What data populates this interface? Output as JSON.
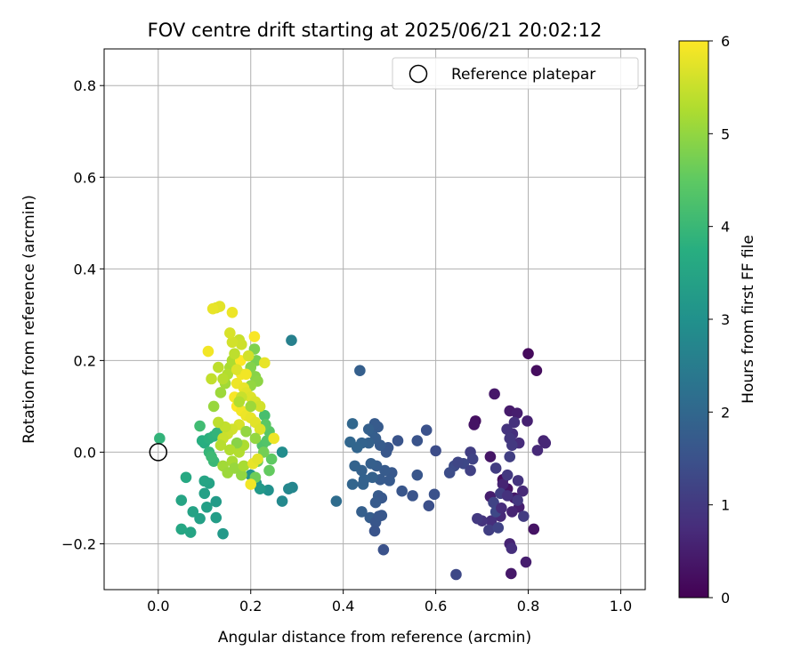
{
  "chart_data": {
    "type": "scatter",
    "title": "FOV centre drift starting at 2025/06/21 20:02:12",
    "xlabel": "Angular distance from reference (arcmin)",
    "ylabel": "Rotation from reference (arcmin)",
    "xlim": [
      -0.117,
      1.053
    ],
    "ylim": [
      -0.3,
      0.88
    ],
    "xticks": [
      0.0,
      0.2,
      0.4,
      0.6,
      0.8,
      1.0
    ],
    "xtick_labels": [
      "0.0",
      "0.2",
      "0.4",
      "0.6",
      "0.8",
      "1.0"
    ],
    "yticks": [
      -0.2,
      0.0,
      0.2,
      0.4,
      0.6,
      0.8
    ],
    "ytick_labels": [
      "−0.2",
      "0.0",
      "0.2",
      "0.4",
      "0.6",
      "0.8"
    ],
    "grid": true,
    "legend": {
      "position": "top-right",
      "entries": [
        "Reference platepar"
      ]
    },
    "reference_point": {
      "x": 0.0,
      "y": 0.0
    },
    "colorbar": {
      "label": "Hours from first FF file",
      "min": 0,
      "max": 6,
      "ticks": [
        0,
        1,
        2,
        3,
        4,
        5,
        6
      ],
      "tick_labels": [
        "0",
        "1",
        "2",
        "3",
        "4",
        "5",
        "6"
      ],
      "colormap": "viridis"
    },
    "points": [
      [
        0.8,
        0.215,
        0.15
      ],
      [
        0.818,
        0.178,
        0.2
      ],
      [
        0.686,
        0.068,
        0.25
      ],
      [
        0.683,
        0.06,
        0.3
      ],
      [
        0.718,
        -0.01,
        0.35
      ],
      [
        0.727,
        0.127,
        0.4
      ],
      [
        0.76,
        0.09,
        0.45
      ],
      [
        0.776,
        0.085,
        0.5
      ],
      [
        0.798,
        0.068,
        0.55
      ],
      [
        0.833,
        0.025,
        0.6
      ],
      [
        0.837,
        0.02,
        0.65
      ],
      [
        0.82,
        0.004,
        0.7
      ],
      [
        0.78,
        0.02,
        0.75
      ],
      [
        0.766,
        0.04,
        0.8
      ],
      [
        0.77,
        0.065,
        0.85
      ],
      [
        0.754,
        0.05,
        0.9
      ],
      [
        0.76,
        0.03,
        0.95
      ],
      [
        0.765,
        0.015,
        1.0
      ],
      [
        0.73,
        -0.035,
        1.05
      ],
      [
        0.76,
        -0.01,
        1.1
      ],
      [
        0.745,
        -0.06,
        0.2
      ],
      [
        0.755,
        -0.08,
        0.3
      ],
      [
        0.77,
        -0.1,
        0.4
      ],
      [
        0.78,
        -0.12,
        0.5
      ],
      [
        0.765,
        -0.13,
        0.6
      ],
      [
        0.74,
        -0.14,
        0.7
      ],
      [
        0.72,
        -0.15,
        0.8
      ],
      [
        0.7,
        -0.15,
        0.9
      ],
      [
        0.69,
        -0.145,
        1.0
      ],
      [
        0.715,
        -0.17,
        1.1
      ],
      [
        0.735,
        -0.165,
        1.2
      ],
      [
        0.76,
        -0.2,
        0.6
      ],
      [
        0.764,
        -0.21,
        0.8
      ],
      [
        0.812,
        -0.168,
        0.3
      ],
      [
        0.795,
        -0.24,
        0.5
      ],
      [
        0.763,
        -0.265,
        0.4
      ],
      [
        0.718,
        -0.097,
        0.5
      ],
      [
        0.745,
        -0.07,
        0.6
      ],
      [
        0.788,
        -0.085,
        0.7
      ],
      [
        0.778,
        -0.062,
        0.9
      ],
      [
        0.755,
        -0.05,
        1.0
      ],
      [
        0.74,
        -0.09,
        1.1
      ],
      [
        0.725,
        -0.11,
        1.2
      ],
      [
        0.73,
        -0.13,
        1.3
      ],
      [
        0.742,
        -0.122,
        0.75
      ],
      [
        0.755,
        -0.095,
        0.85
      ],
      [
        0.777,
        -0.105,
        0.95
      ],
      [
        0.79,
        -0.14,
        1.05
      ],
      [
        0.675,
        0.0,
        1.1
      ],
      [
        0.68,
        -0.015,
        1.2
      ],
      [
        0.66,
        -0.025,
        1.3
      ],
      [
        0.64,
        -0.03,
        1.35
      ],
      [
        0.648,
        -0.022,
        1.25
      ],
      [
        0.675,
        -0.04,
        1.15
      ],
      [
        0.63,
        -0.045,
        1.4
      ],
      [
        0.644,
        -0.267,
        1.3
      ],
      [
        0.6,
        0.003,
        1.4
      ],
      [
        0.58,
        0.048,
        1.5
      ],
      [
        0.56,
        0.025,
        1.55
      ],
      [
        0.597,
        -0.092,
        1.5
      ],
      [
        0.585,
        -0.117,
        1.45
      ],
      [
        0.56,
        -0.05,
        1.6
      ],
      [
        0.55,
        -0.095,
        1.55
      ],
      [
        0.527,
        -0.085,
        1.6
      ],
      [
        0.505,
        -0.045,
        1.65
      ],
      [
        0.49,
        -0.04,
        1.7
      ],
      [
        0.48,
        -0.06,
        1.72
      ],
      [
        0.5,
        -0.062,
        1.68
      ],
      [
        0.472,
        -0.03,
        1.75
      ],
      [
        0.46,
        -0.025,
        1.8
      ],
      [
        0.44,
        -0.04,
        1.85
      ],
      [
        0.425,
        -0.03,
        1.9
      ],
      [
        0.42,
        -0.07,
        1.95
      ],
      [
        0.443,
        -0.07,
        1.9
      ],
      [
        0.463,
        -0.055,
        1.85
      ],
      [
        0.445,
        -0.06,
        1.88
      ],
      [
        0.476,
        -0.095,
        1.7
      ],
      [
        0.483,
        -0.1,
        1.65
      ],
      [
        0.47,
        -0.11,
        1.7
      ],
      [
        0.44,
        -0.13,
        1.8
      ],
      [
        0.458,
        -0.143,
        1.75
      ],
      [
        0.47,
        -0.153,
        1.6
      ],
      [
        0.483,
        -0.138,
        1.65
      ],
      [
        0.477,
        -0.14,
        1.62
      ],
      [
        0.468,
        -0.172,
        1.55
      ],
      [
        0.487,
        -0.213,
        1.5
      ],
      [
        0.518,
        0.025,
        1.55
      ],
      [
        0.497,
        0.01,
        1.6
      ],
      [
        0.493,
        -0.0,
        1.62
      ],
      [
        0.48,
        0.015,
        1.7
      ],
      [
        0.47,
        0.03,
        1.75
      ],
      [
        0.462,
        0.045,
        1.78
      ],
      [
        0.475,
        0.055,
        1.7
      ],
      [
        0.468,
        0.062,
        1.72
      ],
      [
        0.455,
        0.05,
        1.82
      ],
      [
        0.455,
        0.02,
        1.85
      ],
      [
        0.44,
        0.02,
        1.9
      ],
      [
        0.43,
        0.01,
        1.95
      ],
      [
        0.415,
        0.022,
        1.98
      ],
      [
        0.42,
        0.062,
        2.0
      ],
      [
        0.436,
        0.178,
        1.8
      ],
      [
        0.385,
        -0.107,
        2.1
      ],
      [
        0.288,
        0.244,
        2.6
      ],
      [
        0.29,
        -0.077,
        2.7
      ],
      [
        0.282,
        -0.08,
        2.75
      ],
      [
        0.268,
        -0.107,
        2.8
      ],
      [
        0.268,
        0.0,
        2.9
      ],
      [
        0.238,
        -0.083,
        3.0
      ],
      [
        0.2,
        -0.05,
        3.1
      ],
      [
        0.212,
        -0.068,
        3.15
      ],
      [
        0.22,
        -0.08,
        3.2
      ],
      [
        0.14,
        -0.178,
        3.2
      ],
      [
        0.125,
        -0.108,
        3.25
      ],
      [
        0.125,
        -0.143,
        3.3
      ],
      [
        0.105,
        -0.12,
        3.35
      ],
      [
        0.1,
        -0.09,
        3.4
      ],
      [
        0.11,
        -0.068,
        3.45
      ],
      [
        0.1,
        -0.063,
        3.5
      ],
      [
        0.09,
        -0.145,
        3.4
      ],
      [
        0.075,
        -0.13,
        3.45
      ],
      [
        0.07,
        -0.175,
        3.5
      ],
      [
        0.05,
        -0.168,
        3.55
      ],
      [
        0.05,
        -0.105,
        3.5
      ],
      [
        0.06,
        -0.055,
        3.6
      ],
      [
        0.1,
        0.02,
        3.7
      ],
      [
        0.095,
        0.025,
        3.75
      ],
      [
        0.11,
        0.03,
        3.8
      ],
      [
        0.12,
        0.035,
        3.85
      ],
      [
        0.127,
        0.042,
        3.9
      ],
      [
        0.11,
        0.0,
        3.95
      ],
      [
        0.12,
        -0.02,
        4.0
      ],
      [
        0.115,
        -0.01,
        4.05
      ],
      [
        0.09,
        0.057,
        4.1
      ],
      [
        0.003,
        0.03,
        3.9
      ],
      [
        0.23,
        0.08,
        4.2
      ],
      [
        0.225,
        0.015,
        4.3
      ],
      [
        0.235,
        0.025,
        4.35
      ],
      [
        0.24,
        0.045,
        4.4
      ],
      [
        0.232,
        0.06,
        4.45
      ],
      [
        0.245,
        -0.015,
        4.5
      ],
      [
        0.24,
        -0.04,
        4.55
      ],
      [
        0.215,
        -0.02,
        4.6
      ],
      [
        0.21,
        -0.055,
        4.65
      ],
      [
        0.228,
        0.0,
        4.7
      ],
      [
        0.212,
        0.2,
        4.75
      ],
      [
        0.208,
        0.225,
        4.8
      ],
      [
        0.2,
        0.185,
        4.85
      ],
      [
        0.21,
        0.165,
        4.9
      ],
      [
        0.215,
        0.155,
        4.95
      ],
      [
        0.2,
        0.145,
        5.0
      ],
      [
        0.12,
        0.1,
        5.05
      ],
      [
        0.135,
        0.13,
        5.1
      ],
      [
        0.145,
        0.15,
        5.15
      ],
      [
        0.155,
        0.185,
        5.2
      ],
      [
        0.16,
        0.2,
        5.25
      ],
      [
        0.15,
        0.17,
        5.3
      ],
      [
        0.14,
        0.16,
        5.35
      ],
      [
        0.13,
        0.185,
        5.4
      ],
      [
        0.115,
        0.16,
        5.45
      ],
      [
        0.175,
        0.245,
        5.5
      ],
      [
        0.18,
        0.235,
        5.55
      ],
      [
        0.16,
        0.24,
        5.6
      ],
      [
        0.155,
        0.26,
        5.65
      ],
      [
        0.125,
        0.315,
        5.7
      ],
      [
        0.133,
        0.318,
        5.75
      ],
      [
        0.118,
        0.313,
        5.8
      ],
      [
        0.16,
        0.305,
        5.85
      ],
      [
        0.108,
        0.22,
        5.9
      ],
      [
        0.208,
        0.252,
        5.95
      ],
      [
        0.178,
        0.2,
        6.0
      ],
      [
        0.18,
        0.17,
        5.9
      ],
      [
        0.17,
        0.15,
        5.85
      ],
      [
        0.185,
        0.14,
        5.8
      ],
      [
        0.19,
        0.13,
        5.75
      ],
      [
        0.2,
        0.12,
        5.7
      ],
      [
        0.21,
        0.11,
        5.65
      ],
      [
        0.22,
        0.1,
        5.6
      ],
      [
        0.165,
        0.12,
        5.95
      ],
      [
        0.17,
        0.1,
        6.0
      ],
      [
        0.18,
        0.09,
        5.9
      ],
      [
        0.19,
        0.08,
        5.85
      ],
      [
        0.2,
        0.075,
        5.8
      ],
      [
        0.21,
        0.065,
        5.75
      ],
      [
        0.22,
        0.05,
        5.7
      ],
      [
        0.175,
        0.06,
        5.65
      ],
      [
        0.16,
        0.05,
        5.6
      ],
      [
        0.15,
        0.04,
        5.55
      ],
      [
        0.14,
        0.03,
        5.5
      ],
      [
        0.145,
        0.055,
        5.45
      ],
      [
        0.13,
        0.065,
        5.4
      ],
      [
        0.135,
        0.015,
        5.35
      ],
      [
        0.175,
        0.0,
        5.3
      ],
      [
        0.185,
        0.015,
        5.25
      ],
      [
        0.16,
        -0.02,
        5.2
      ],
      [
        0.14,
        -0.03,
        5.15
      ],
      [
        0.15,
        -0.045,
        5.1
      ],
      [
        0.165,
        -0.035,
        5.05
      ],
      [
        0.18,
        -0.05,
        5.0
      ],
      [
        0.185,
        -0.03,
        5.2
      ],
      [
        0.2,
        -0.07,
        5.9
      ],
      [
        0.205,
        -0.025,
        5.8
      ],
      [
        0.215,
        -0.015,
        5.75
      ],
      [
        0.25,
        0.03,
        5.85
      ],
      [
        0.17,
        0.18,
        5.7
      ],
      [
        0.19,
        0.17,
        5.9
      ],
      [
        0.23,
        0.195,
        5.8
      ],
      [
        0.195,
        0.21,
        5.6
      ],
      [
        0.165,
        0.215,
        5.4
      ],
      [
        0.18,
        0.12,
        5.5
      ],
      [
        0.175,
        0.11,
        5.3
      ],
      [
        0.2,
        0.1,
        5.1
      ],
      [
        0.19,
        0.045,
        5.0
      ],
      [
        0.17,
        0.02,
        4.9
      ],
      [
        0.155,
        0.005,
        5.3
      ],
      [
        0.21,
        0.03,
        5.0
      ]
    ]
  }
}
